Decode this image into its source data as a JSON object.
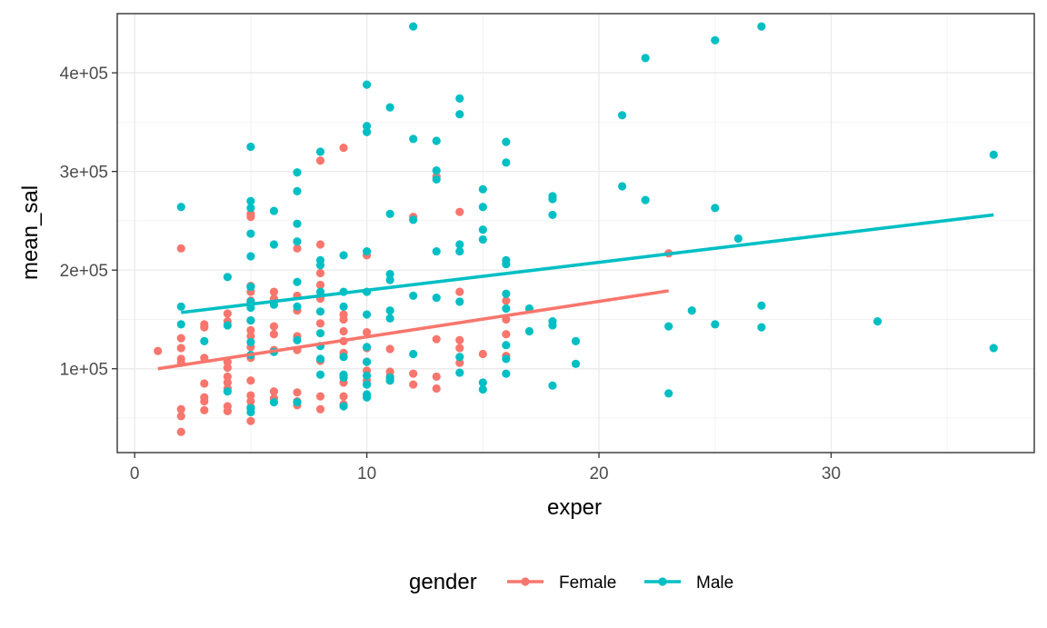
{
  "chart_data": {
    "type": "scatter",
    "title": "",
    "xlabel": "exper",
    "ylabel": "mean_sal",
    "xlim": [
      -0.75,
      38.75
    ],
    "ylim": [
      15000,
      460000
    ],
    "x_ticks": [
      0,
      10,
      20,
      30
    ],
    "x_tick_labels": [
      "0",
      "10",
      "20",
      "30"
    ],
    "y_ticks": [
      100000,
      200000,
      300000,
      400000
    ],
    "y_tick_labels": [
      "1e+05",
      "2e+05",
      "3e+05",
      "4e+05"
    ],
    "grid": true,
    "theme": "bw",
    "legend": {
      "title": "gender",
      "position": "bottom",
      "entries": [
        "Female",
        "Male"
      ]
    },
    "series": [
      {
        "name": "Female",
        "color": "#F8766D",
        "trend": {
          "x": [
            1,
            23
          ],
          "y": [
            100000,
            179000
          ]
        },
        "points": [
          [
            1,
            118000
          ],
          [
            2,
            222000
          ],
          [
            2,
            131000
          ],
          [
            2,
            121000
          ],
          [
            2,
            110000
          ],
          [
            2,
            106000
          ],
          [
            2,
            59000
          ],
          [
            2,
            52000
          ],
          [
            2,
            36000
          ],
          [
            3,
            145000
          ],
          [
            3,
            142000
          ],
          [
            3,
            111000
          ],
          [
            3,
            85000
          ],
          [
            3,
            71000
          ],
          [
            3,
            67000
          ],
          [
            3,
            58000
          ],
          [
            4,
            156000
          ],
          [
            4,
            148000
          ],
          [
            4,
            107000
          ],
          [
            4,
            101000
          ],
          [
            4,
            92000
          ],
          [
            4,
            86000
          ],
          [
            4,
            80000
          ],
          [
            4,
            62000
          ],
          [
            4,
            57000
          ],
          [
            5,
            257000
          ],
          [
            5,
            254000
          ],
          [
            5,
            184000
          ],
          [
            5,
            178000
          ],
          [
            5,
            169000
          ],
          [
            5,
            149000
          ],
          [
            5,
            139000
          ],
          [
            5,
            133000
          ],
          [
            5,
            122000
          ],
          [
            5,
            111000
          ],
          [
            5,
            88000
          ],
          [
            5,
            73000
          ],
          [
            5,
            67000
          ],
          [
            5,
            61000
          ],
          [
            5,
            47000
          ],
          [
            6,
            178000
          ],
          [
            6,
            171000
          ],
          [
            6,
            143000
          ],
          [
            6,
            135000
          ],
          [
            6,
            119000
          ],
          [
            6,
            77000
          ],
          [
            6,
            70000
          ],
          [
            7,
            222000
          ],
          [
            7,
            174000
          ],
          [
            7,
            159000
          ],
          [
            7,
            133000
          ],
          [
            7,
            119000
          ],
          [
            7,
            76000
          ],
          [
            7,
            67000
          ],
          [
            7,
            63000
          ],
          [
            8,
            311000
          ],
          [
            8,
            226000
          ],
          [
            8,
            197000
          ],
          [
            8,
            185000
          ],
          [
            8,
            171000
          ],
          [
            8,
            146000
          ],
          [
            8,
            108000
          ],
          [
            8,
            72000
          ],
          [
            8,
            59000
          ],
          [
            9,
            324000
          ],
          [
            9,
            155000
          ],
          [
            9,
            150000
          ],
          [
            9,
            138000
          ],
          [
            9,
            128000
          ],
          [
            9,
            116000
          ],
          [
            9,
            93000
          ],
          [
            9,
            86000
          ],
          [
            9,
            72000
          ],
          [
            9,
            64000
          ],
          [
            10,
            215000
          ],
          [
            10,
            137000
          ],
          [
            10,
            121000
          ],
          [
            10,
            107000
          ],
          [
            10,
            98000
          ],
          [
            10,
            88000
          ],
          [
            11,
            120000
          ],
          [
            11,
            97000
          ],
          [
            11,
            92000
          ],
          [
            11,
            88000
          ],
          [
            12,
            254000
          ],
          [
            12,
            95000
          ],
          [
            12,
            84000
          ],
          [
            13,
            295000
          ],
          [
            13,
            130000
          ],
          [
            13,
            92000
          ],
          [
            13,
            80000
          ],
          [
            14,
            259000
          ],
          [
            14,
            178000
          ],
          [
            14,
            129000
          ],
          [
            14,
            121000
          ],
          [
            14,
            106000
          ],
          [
            15,
            115000
          ],
          [
            16,
            169000
          ],
          [
            16,
            150000
          ],
          [
            16,
            135000
          ],
          [
            16,
            113000
          ],
          [
            23,
            217000
          ]
        ]
      },
      {
        "name": "Male",
        "color": "#00BFC4",
        "trend": {
          "x": [
            2,
            37
          ],
          "y": [
            157000,
            256000
          ]
        },
        "points": [
          [
            2,
            264000
          ],
          [
            2,
            163000
          ],
          [
            2,
            145000
          ],
          [
            3,
            128000
          ],
          [
            4,
            193000
          ],
          [
            4,
            144000
          ],
          [
            4,
            77000
          ],
          [
            5,
            325000
          ],
          [
            5,
            270000
          ],
          [
            5,
            263000
          ],
          [
            5,
            237000
          ],
          [
            5,
            214000
          ],
          [
            5,
            183000
          ],
          [
            5,
            168000
          ],
          [
            5,
            162000
          ],
          [
            5,
            149000
          ],
          [
            5,
            127000
          ],
          [
            5,
            114000
          ],
          [
            5,
            60000
          ],
          [
            5,
            56000
          ],
          [
            6,
            260000
          ],
          [
            6,
            226000
          ],
          [
            6,
            165000
          ],
          [
            6,
            117000
          ],
          [
            6,
            66000
          ],
          [
            7,
            299000
          ],
          [
            7,
            280000
          ],
          [
            7,
            247000
          ],
          [
            7,
            229000
          ],
          [
            7,
            188000
          ],
          [
            7,
            163000
          ],
          [
            7,
            129000
          ],
          [
            7,
            66000
          ],
          [
            8,
            320000
          ],
          [
            8,
            210000
          ],
          [
            8,
            205000
          ],
          [
            8,
            178000
          ],
          [
            8,
            158000
          ],
          [
            8,
            136000
          ],
          [
            8,
            123000
          ],
          [
            8,
            110000
          ],
          [
            8,
            94000
          ],
          [
            9,
            215000
          ],
          [
            9,
            178000
          ],
          [
            9,
            163000
          ],
          [
            9,
            112000
          ],
          [
            9,
            94000
          ],
          [
            9,
            91000
          ],
          [
            9,
            62000
          ],
          [
            10,
            388000
          ],
          [
            10,
            346000
          ],
          [
            10,
            340000
          ],
          [
            10,
            219000
          ],
          [
            10,
            178000
          ],
          [
            10,
            155000
          ],
          [
            10,
            122000
          ],
          [
            10,
            107000
          ],
          [
            10,
            93000
          ],
          [
            10,
            84000
          ],
          [
            10,
            74000
          ],
          [
            10,
            71000
          ],
          [
            11,
            365000
          ],
          [
            11,
            257000
          ],
          [
            11,
            196000
          ],
          [
            11,
            190000
          ],
          [
            11,
            159000
          ],
          [
            11,
            151000
          ],
          [
            11,
            91000
          ],
          [
            11,
            88000
          ],
          [
            12,
            447000
          ],
          [
            12,
            333000
          ],
          [
            12,
            251000
          ],
          [
            12,
            174000
          ],
          [
            12,
            115000
          ],
          [
            13,
            331000
          ],
          [
            13,
            301000
          ],
          [
            13,
            292000
          ],
          [
            13,
            219000
          ],
          [
            13,
            172000
          ],
          [
            14,
            374000
          ],
          [
            14,
            358000
          ],
          [
            14,
            226000
          ],
          [
            14,
            219000
          ],
          [
            14,
            168000
          ],
          [
            14,
            112000
          ],
          [
            14,
            96000
          ],
          [
            15,
            282000
          ],
          [
            15,
            264000
          ],
          [
            15,
            241000
          ],
          [
            15,
            231000
          ],
          [
            15,
            86000
          ],
          [
            15,
            79000
          ],
          [
            16,
            330000
          ],
          [
            16,
            309000
          ],
          [
            16,
            210000
          ],
          [
            16,
            206000
          ],
          [
            16,
            176000
          ],
          [
            16,
            161000
          ],
          [
            16,
            124000
          ],
          [
            16,
            110000
          ],
          [
            16,
            95000
          ],
          [
            17,
            161000
          ],
          [
            17,
            138000
          ],
          [
            18,
            275000
          ],
          [
            18,
            272000
          ],
          [
            18,
            256000
          ],
          [
            18,
            148000
          ],
          [
            18,
            144000
          ],
          [
            18,
            83000
          ],
          [
            19,
            128000
          ],
          [
            19,
            105000
          ],
          [
            21,
            357000
          ],
          [
            21,
            285000
          ],
          [
            22,
            415000
          ],
          [
            22,
            271000
          ],
          [
            23,
            143000
          ],
          [
            23,
            75000
          ],
          [
            24,
            159000
          ],
          [
            25,
            433000
          ],
          [
            25,
            263000
          ],
          [
            25,
            145000
          ],
          [
            26,
            232000
          ],
          [
            27,
            447000
          ],
          [
            27,
            164000
          ],
          [
            27,
            142000
          ],
          [
            32,
            148000
          ],
          [
            37,
            317000
          ],
          [
            37,
            121000
          ]
        ]
      }
    ]
  }
}
